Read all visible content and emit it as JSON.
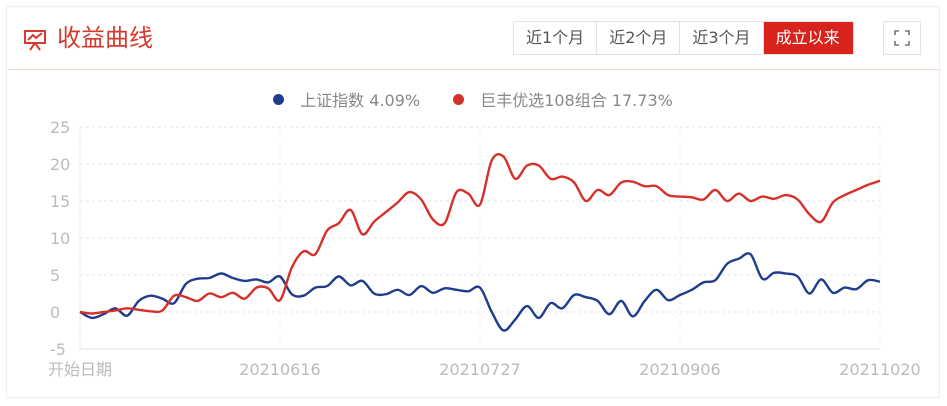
{
  "header": {
    "title": "收益曲线",
    "title_icon": "chart-board-icon",
    "range_buttons": [
      {
        "label": "近1个月",
        "active": false
      },
      {
        "label": "近2个月",
        "active": false
      },
      {
        "label": "近3个月",
        "active": false
      },
      {
        "label": "成立以来",
        "active": true
      }
    ],
    "fullscreen_icon": "fullscreen-icon"
  },
  "legend": [
    {
      "label": "上证指数 4.09%",
      "color": "#1f3d8c"
    },
    {
      "label": "巨丰优选108组合 17.73%",
      "color": "#d6302a"
    }
  ],
  "chart_data": {
    "type": "line",
    "ylim": [
      -5,
      25
    ],
    "yticks": [
      "25",
      "20",
      "15",
      "10",
      "5",
      "0",
      "-5"
    ],
    "xticks": [
      "开始日期",
      "20210616",
      "20210727",
      "20210906",
      "20211020"
    ],
    "grid": true,
    "series": [
      {
        "name": "上证指数 4.09%",
        "color": "#1f3d8c",
        "values": [
          0,
          -0.8,
          -0.3,
          0.5,
          -0.5,
          1.5,
          2.2,
          1.8,
          1.2,
          3.8,
          4.5,
          4.6,
          5.2,
          4.6,
          4.2,
          4.4,
          4.0,
          4.8,
          2.4,
          2.2,
          3.3,
          3.5,
          4.8,
          3.6,
          4.2,
          2.5,
          2.4,
          3.0,
          2.3,
          3.5,
          2.6,
          3.2,
          3.0,
          2.8,
          3.3,
          0,
          -2.5,
          -1.0,
          0.8,
          -0.8,
          1.2,
          0.5,
          2.3,
          2.0,
          1.5,
          -0.3,
          1.5,
          -0.6,
          1.5,
          3.0,
          1.6,
          2.3,
          3.0,
          4.0,
          4.3,
          6.5,
          7.2,
          7.8,
          4.5,
          5.3,
          5.2,
          4.8,
          2.5,
          4.4,
          2.6,
          3.3,
          3.1,
          4.3,
          4.09
        ]
      },
      {
        "name": "巨丰优选108组合 17.73%",
        "color": "#d6302a",
        "values": [
          0,
          -0.2,
          0,
          0.2,
          0.5,
          0.3,
          0.1,
          0.2,
          2.2,
          2.0,
          1.5,
          2.5,
          2.0,
          2.6,
          1.8,
          3.3,
          3.2,
          1.6,
          6.0,
          8.2,
          7.8,
          11.0,
          12.0,
          13.8,
          10.5,
          12.2,
          13.5,
          14.8,
          16.2,
          15.2,
          12.5,
          12.0,
          16.2,
          16.0,
          14.5,
          20.5,
          21.0,
          18.0,
          19.8,
          19.8,
          18.0,
          18.3,
          17.5,
          15.0,
          16.5,
          15.8,
          17.5,
          17.6,
          17.0,
          17.0,
          15.8,
          15.6,
          15.5,
          15.2,
          16.5,
          15.0,
          16.0,
          15.0,
          15.6,
          15.3,
          15.8,
          15.2,
          13.2,
          12.2,
          14.8,
          15.8,
          16.5,
          17.2,
          17.73
        ]
      }
    ]
  }
}
